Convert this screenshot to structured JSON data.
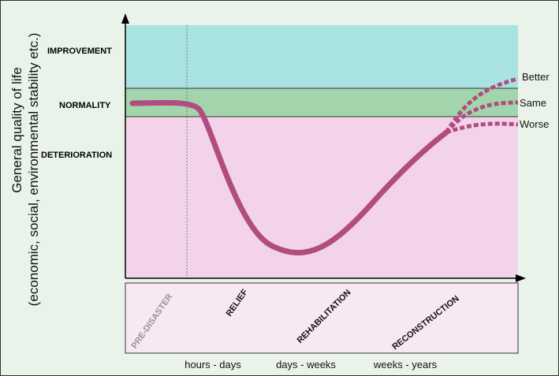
{
  "y_axis": {
    "line1": "General quality of life",
    "line2": "(economic, social, environmental stability etc.)"
  },
  "zones": {
    "improvement": "IMPROVEMENT",
    "normality": "NORMALITY",
    "deterioration": "DETERIORATION"
  },
  "outcomes": {
    "better": "Better",
    "same": "Same",
    "worse": "Worse"
  },
  "phases": {
    "pre_disaster": "PRE-DISASTER",
    "relief": "RELIEF",
    "rehabilitation": "REHABILITATION",
    "reconstruction": "RECONSTRUCTION"
  },
  "time_labels": {
    "t1": "hours - days",
    "t2": "days - weeks",
    "t3": "weeks - years"
  },
  "colors": {
    "improvement": "#a8e3e1",
    "normality": "#a3d5ad",
    "deterioration": "#f3d3ea",
    "curve": "#b14c80",
    "phase_box": "#f8e8f3"
  }
}
